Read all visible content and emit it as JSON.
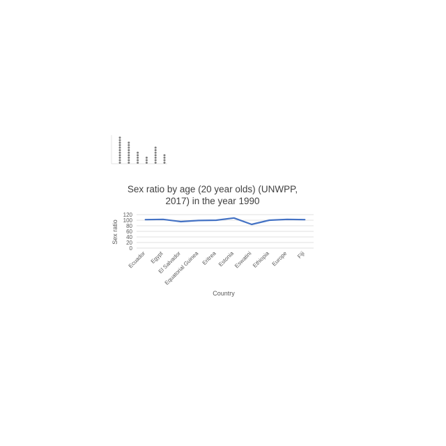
{
  "chart_data": [
    {
      "type": "scatter",
      "title": "",
      "xlabel": "",
      "ylabel": "",
      "categories": [
        "",
        "",
        "",
        "",
        "",
        ""
      ],
      "values": [
        11,
        9,
        5,
        3,
        7,
        4
      ],
      "ylim": [
        0,
        11
      ],
      "grid": false,
      "colors": {
        "dots": "#7f7f7f"
      }
    },
    {
      "type": "line",
      "title": "Sex ratio by age (20 year olds) (UNWPP, 2017) in the year 1990",
      "title_lines": [
        "Sex ratio by age (20 year olds) (UNWPP,",
        "2017) in the year 1990"
      ],
      "xlabel": "Country",
      "ylabel": "Sex ratio",
      "categories": [
        "Ecuador",
        "Egypt",
        "El Salvador",
        "Equatorial Guinea",
        "Eritrea",
        "Estonia",
        "Eswatini",
        "Ethiopia",
        "Europe",
        "Fiji"
      ],
      "series": [
        {
          "values": [
            102,
            103,
            95,
            99,
            100,
            108,
            85,
            100,
            103,
            102
          ]
        }
      ],
      "yticks": [
        0,
        20,
        40,
        60,
        80,
        100,
        120
      ],
      "ylim": [
        0,
        120
      ],
      "grid": true,
      "legend": "none",
      "colors": {
        "line": "#4472c4",
        "grid": "#d9d9d9",
        "text": "#595959"
      }
    }
  ]
}
